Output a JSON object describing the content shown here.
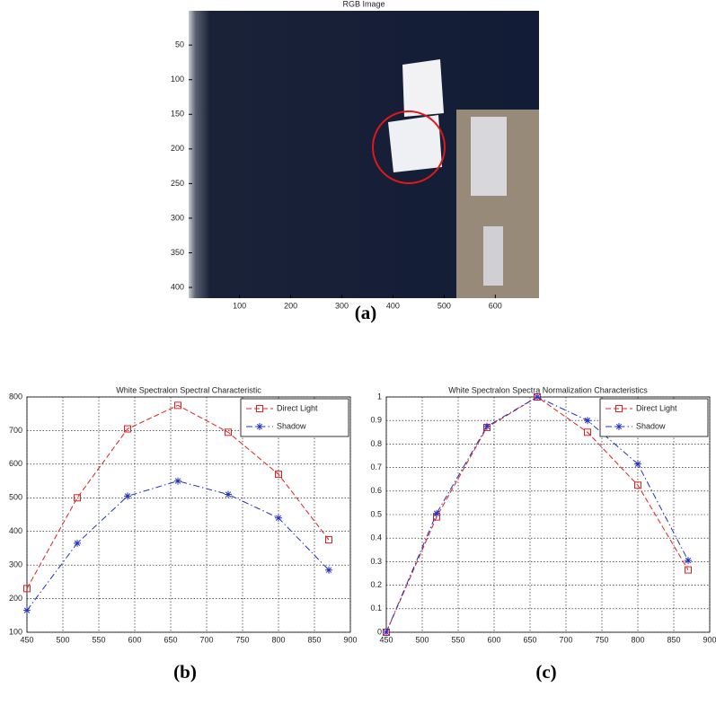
{
  "chart_data": [
    {
      "type": "image",
      "title": "RGB Image",
      "caption": "(a)",
      "xlim": [
        0.5,
        685.5
      ],
      "ylim": [
        0.5,
        415.5
      ],
      "y_reversed": true,
      "xticks": [
        100,
        200,
        300,
        400,
        500,
        600
      ],
      "yticks": [
        50,
        100,
        150,
        200,
        250,
        300,
        350,
        400
      ]
    },
    {
      "type": "line",
      "title": "White Spectralon Spectral Characteristic",
      "caption": "(b)",
      "x": [
        450,
        520,
        590,
        660,
        730,
        800,
        870
      ],
      "series": [
        {
          "name": "Direct Light",
          "color": "#e02020",
          "marker": "square",
          "values": [
            230,
            500,
            705,
            775,
            695,
            570,
            375
          ]
        },
        {
          "name": "Shadow",
          "color": "#2030c0",
          "marker": "star",
          "values": [
            165,
            365,
            505,
            550,
            510,
            440,
            285
          ]
        }
      ],
      "xlim": [
        450,
        900
      ],
      "ylim": [
        100,
        800
      ],
      "xticks": [
        450,
        500,
        550,
        600,
        650,
        700,
        750,
        800,
        850,
        900
      ],
      "yticks": [
        100,
        200,
        300,
        400,
        500,
        600,
        700,
        800
      ],
      "grid": true,
      "legend": "upper right"
    },
    {
      "type": "line",
      "title": "White Spectralon Spectra Normalization Characteristics",
      "caption": "(c)",
      "x": [
        450,
        520,
        590,
        660,
        730,
        800,
        870
      ],
      "series": [
        {
          "name": "Direct Light",
          "color": "#e02020",
          "marker": "square",
          "values": [
            0,
            0.49,
            0.87,
            1,
            0.85,
            0.625,
            0.265
          ]
        },
        {
          "name": "Shadow",
          "color": "#2030c0",
          "marker": "star",
          "values": [
            0,
            0.505,
            0.875,
            1,
            0.9,
            0.715,
            0.305
          ]
        }
      ],
      "xlim": [
        450,
        900
      ],
      "ylim": [
        0,
        1
      ],
      "xticks": [
        450,
        500,
        550,
        600,
        650,
        700,
        750,
        800,
        850,
        900
      ],
      "yticks": [
        0,
        0.1,
        0.2,
        0.3,
        0.4,
        0.5,
        0.6,
        0.7,
        0.8,
        0.9,
        1
      ],
      "grid": true,
      "legend": "upper right"
    }
  ]
}
